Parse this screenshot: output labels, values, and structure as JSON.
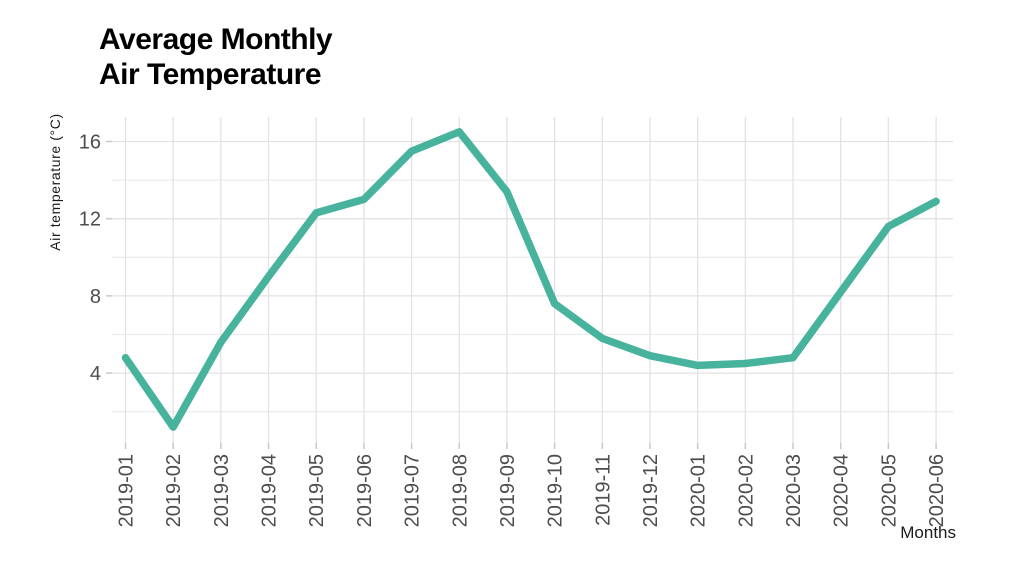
{
  "page": {
    "background": "#ffffff"
  },
  "chart_data": {
    "type": "line",
    "title_line1": "Average Monthly",
    "title_line2": "Air Temperature",
    "xlabel": "Months",
    "ylabel": "Air temperature (°C)",
    "categories": [
      "2019-01",
      "2019-02",
      "2019-03",
      "2019-04",
      "2019-05",
      "2019-06",
      "2019-07",
      "2019-08",
      "2019-09",
      "2019-10",
      "2019-11",
      "2019-12",
      "2020-01",
      "2020-02",
      "2020-03",
      "2020-04",
      "2020-05",
      "2020-06"
    ],
    "series": [
      {
        "name": "Air temperature",
        "values": [
          4.8,
          1.2,
          5.6,
          9.0,
          12.3,
          13.0,
          15.5,
          16.5,
          13.4,
          7.6,
          5.8,
          4.9,
          4.4,
          4.5,
          4.8,
          8.2,
          11.6,
          12.9
        ]
      }
    ],
    "yticks": [
      4,
      8,
      12,
      16
    ],
    "ygrid_min": 2,
    "ygrid_max": 16,
    "ygrid_step": 2,
    "ylim": [
      0.4,
      17.3
    ],
    "grid": "on",
    "legend": "none",
    "colors": {
      "line": "#47b39d",
      "grid_major": "#e2e2e2",
      "grid_minor": "#ececec",
      "tick_mark": "#c9c9c9",
      "axis_text": "#4d4d4d",
      "title_text": "#000000",
      "axis_title_text": "#1a1a1a"
    }
  }
}
